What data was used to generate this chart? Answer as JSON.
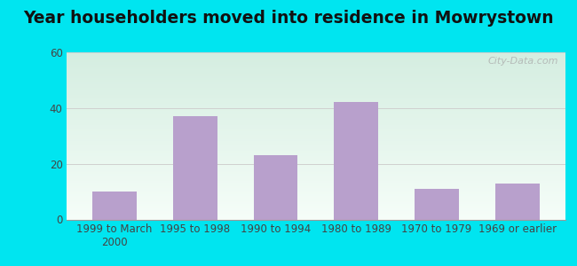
{
  "title": "Year householders moved into residence in Mowrystown",
  "categories": [
    "1999 to March\n2000",
    "1995 to 1998",
    "1990 to 1994",
    "1980 to 1989",
    "1970 to 1979",
    "1969 or earlier"
  ],
  "values": [
    10,
    37,
    23,
    42,
    11,
    13
  ],
  "bar_color": "#b8a0cc",
  "ylim": [
    0,
    60
  ],
  "yticks": [
    0,
    20,
    40,
    60
  ],
  "background_outer": "#00e5f0",
  "bg_top_color": "#d4ede0",
  "bg_bottom_color": "#f5fdf8",
  "grid_color": "#d0d0d0",
  "title_fontsize": 13.5,
  "tick_fontsize": 8.5,
  "watermark": "City-Data.com"
}
